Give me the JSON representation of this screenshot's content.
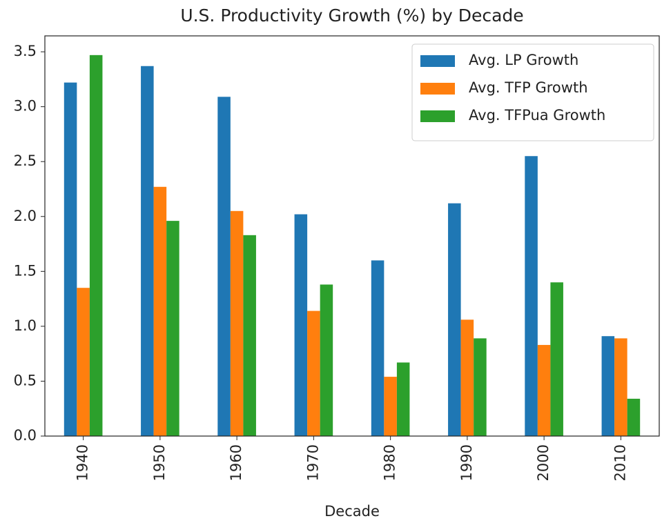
{
  "chart_data": {
    "type": "bar",
    "title": "U.S. Productivity Growth (%) by Decade",
    "x_label": "Decade",
    "categories": [
      "1940",
      "1950",
      "1960",
      "1970",
      "1980",
      "1990",
      "2000",
      "2010"
    ],
    "series": [
      {
        "name": "Avg. LP Growth",
        "color": "#1f77b4",
        "values": [
          3.22,
          3.37,
          3.09,
          2.02,
          1.6,
          2.12,
          2.55,
          0.91
        ]
      },
      {
        "name": "Avg. TFP Growth",
        "color": "#ff7f0e",
        "values": [
          1.35,
          2.27,
          2.05,
          1.14,
          0.54,
          1.06,
          0.83,
          0.89
        ]
      },
      {
        "name": "Avg. TFPua Growth",
        "color": "#2ca02c",
        "values": [
          3.47,
          1.96,
          1.83,
          1.38,
          0.67,
          0.89,
          1.4,
          0.34
        ]
      }
    ],
    "ylim": [
      0,
      3.645
    ],
    "yticks": [
      {
        "value": 0,
        "label": "0.0"
      },
      0.5,
      {
        "value": 1,
        "label": "1.0"
      },
      1.5,
      {
        "value": 2,
        "label": "2.0"
      },
      2.5,
      {
        "value": 3,
        "label": "3.0"
      },
      3.5
    ],
    "grid": false,
    "legend": "upper right"
  }
}
